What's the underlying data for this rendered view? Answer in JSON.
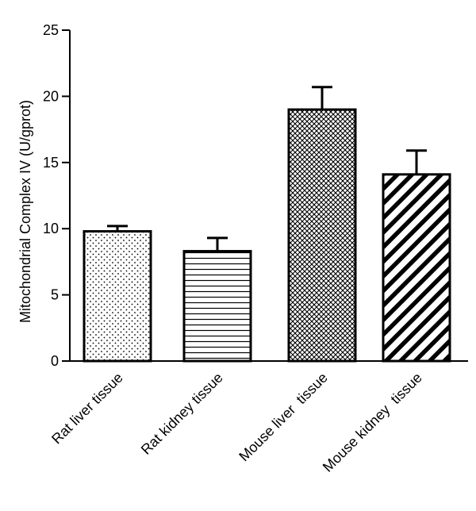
{
  "chart_data": {
    "type": "bar",
    "title": "",
    "xlabel": "",
    "ylabel": "Mitochondrial Complex IV (U/gprot)",
    "ylim": [
      0,
      25
    ],
    "yticks": [
      0,
      5,
      10,
      15,
      20,
      25
    ],
    "grid": false,
    "categories": [
      "Rat liver tissue",
      "Rat kidney tissue",
      "Mouse liver  tissue",
      "Mouse kidney  tissue"
    ],
    "values": [
      9.8,
      8.3,
      19.0,
      14.1
    ],
    "errors": [
      0.4,
      1.0,
      1.7,
      1.8
    ],
    "patterns": [
      "dots",
      "horizontal-lines",
      "crosshatch",
      "diagonal-stripes"
    ]
  }
}
